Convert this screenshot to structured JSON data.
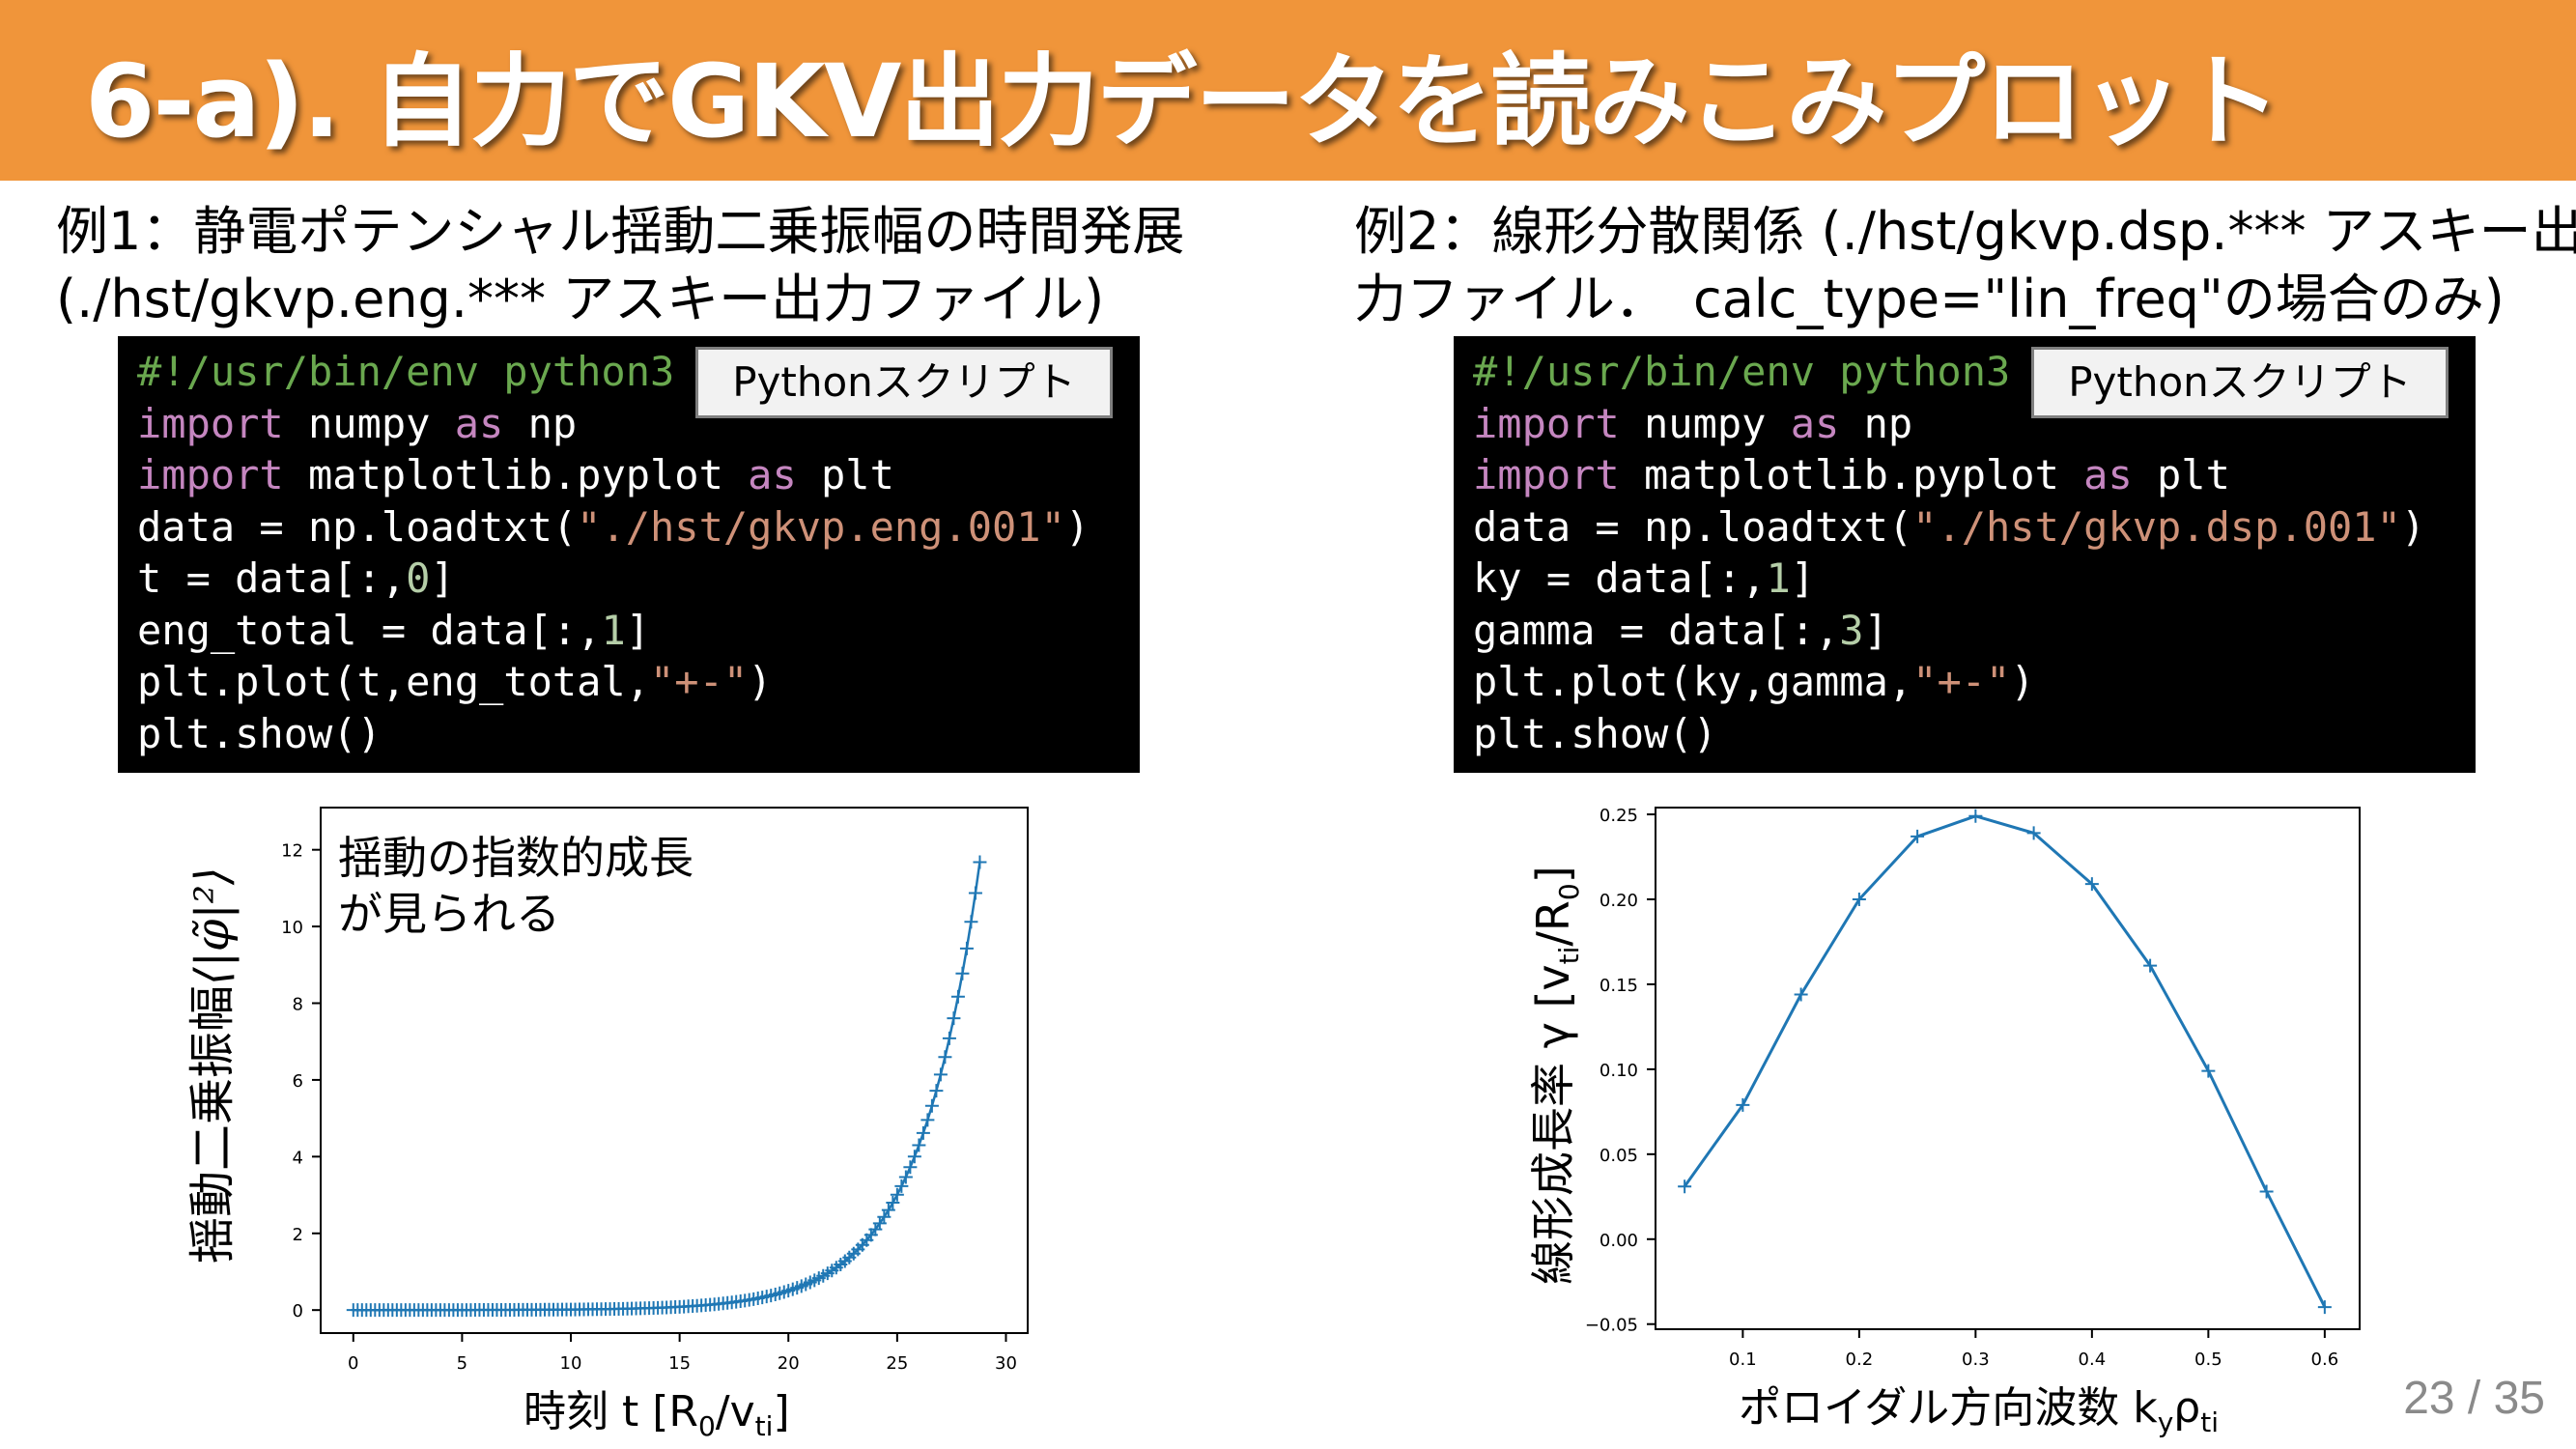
{
  "title": "6-a). 自力でGKV出力データを読みこみプロット",
  "left": {
    "heading_line1": "例1：静電ポテンシャル揺動二乗振幅の時間発展",
    "heading_line2": "(./hst/gkvp.eng.*** アスキー出力ファイル)",
    "script_label": "Pythonスクリプト",
    "code": {
      "l1": "#!/usr/bin/env python3",
      "l2_kw": "import",
      "l2_rest": " numpy ",
      "l2_as": "as",
      "l2_end": " np",
      "l3_kw": "import",
      "l3_rest": " matplotlib.pyplot ",
      "l3_as": "as",
      "l3_end": " plt",
      "l4_a": "data = np.loadtxt(",
      "l4_str": "\"./hst/gkvp.eng.001\"",
      "l4_b": ")",
      "l5_a": "t = data[:,",
      "l5_num": "0",
      "l5_b": "]",
      "l6_a": "eng_total = data[:,",
      "l6_num": "1",
      "l6_b": "]",
      "l7_a": "plt.plot(t,eng_total,",
      "l7_str": "\"+-\"",
      "l7_b": ")",
      "l8": "plt.show()"
    },
    "annotation_line1": "揺動の指数的成長",
    "annotation_line2": "が見られる",
    "ylabel_text": "揺動二乗振幅",
    "ylabel_math": "⟨|φ̃|²⟩",
    "xlabel_text": "時刻 t [R",
    "xlabel_sub0": "0",
    "xlabel_mid": "/v",
    "xlabel_subti": "ti",
    "xlabel_end": "]"
  },
  "right": {
    "heading_line1": "例2：線形分散関係 (./hst/gkvp.dsp.*** アスキー出",
    "heading_line2": "力ファイル．　calc_type=\"lin_freq\"の場合のみ)",
    "script_label": "Pythonスクリプト",
    "code": {
      "l1": "#!/usr/bin/env python3",
      "l2_kw": "import",
      "l2_rest": " numpy ",
      "l2_as": "as",
      "l2_end": " np",
      "l3_kw": "import",
      "l3_rest": " matplotlib.pyplot ",
      "l3_as": "as",
      "l3_end": " plt",
      "l4_a": "data = np.loadtxt(",
      "l4_str": "\"./hst/gkvp.dsp.001\"",
      "l4_b": ")",
      "l5_a": "ky = data[:,",
      "l5_num": "1",
      "l5_b": "]",
      "l6_a": "gamma = data[:,",
      "l6_num": "3",
      "l6_b": "]",
      "l7_a": "plt.plot(ky,gamma,",
      "l7_str": "\"+-\"",
      "l7_b": ")",
      "l8": "plt.show()"
    },
    "ylabel_text": "線形成長率 γ [v",
    "ylabel_subti": "ti",
    "ylabel_mid": "/R",
    "ylabel_sub0": "0",
    "ylabel_end": "]",
    "xlabel_text": "ポロイダル方向波数 k",
    "xlabel_suby": "y",
    "xlabel_rho": "ρ",
    "xlabel_subti": "ti"
  },
  "page_number": "23 / 35",
  "chart_data": [
    {
      "type": "line",
      "marker": "+",
      "color": "#1f77b4",
      "xlim": [
        -1.5,
        31
      ],
      "ylim": [
        -0.6,
        13.1
      ],
      "xticks": [
        0,
        5,
        10,
        15,
        20,
        25,
        30
      ],
      "yticks": [
        0,
        2,
        4,
        6,
        8,
        10,
        12
      ],
      "growth_model": {
        "amplitude": 0.0004,
        "rate": 0.357,
        "t_start": 0,
        "t_end": 28.9,
        "dt": 0.2
      },
      "grid": false
    },
    {
      "type": "line",
      "marker": "+",
      "color": "#1f77b4",
      "x": [
        0.05,
        0.1,
        0.15,
        0.2,
        0.25,
        0.3,
        0.35,
        0.4,
        0.45,
        0.5,
        0.55,
        0.6
      ],
      "y": [
        0.031,
        0.079,
        0.144,
        0.2,
        0.237,
        0.249,
        0.239,
        0.209,
        0.161,
        0.099,
        0.028,
        -0.04
      ],
      "xlim": [
        0.025,
        0.63
      ],
      "ylim": [
        -0.053,
        0.254
      ],
      "xticks": [
        0.1,
        0.2,
        0.3,
        0.4,
        0.5,
        0.6
      ],
      "xtick_labels": [
        "0.1",
        "0.2",
        "0.3",
        "0.4",
        "0.5",
        "0.6"
      ],
      "yticks": [
        -0.05,
        0.0,
        0.05,
        0.1,
        0.15,
        0.2,
        0.25
      ],
      "ytick_labels": [
        "−0.05",
        "0.00",
        "0.05",
        "0.10",
        "0.15",
        "0.20",
        "0.25"
      ],
      "grid": false
    }
  ]
}
